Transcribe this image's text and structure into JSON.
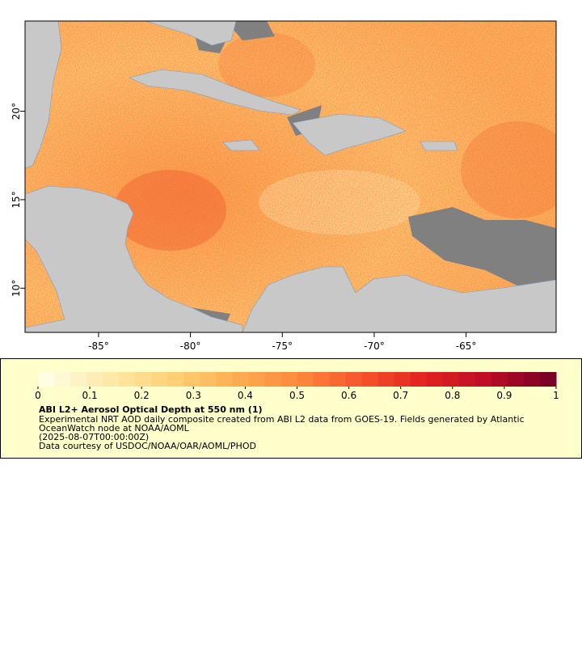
{
  "map": {
    "xlim": [
      -89,
      -60.1
    ],
    "ylim": [
      7.5,
      25.1
    ],
    "xticks": [
      {
        "value": -85,
        "label": "-85°"
      },
      {
        "value": -80,
        "label": "-80°"
      },
      {
        "value": -75,
        "label": "-75°"
      },
      {
        "value": -70,
        "label": "-70°"
      },
      {
        "value": -65,
        "label": "-65°"
      }
    ],
    "yticks": [
      {
        "value": 10,
        "label": "10°"
      },
      {
        "value": 15,
        "label": "15°"
      },
      {
        "value": 20,
        "label": "20°"
      }
    ]
  },
  "colorbar": {
    "lim": [
      0,
      1
    ],
    "ticks": [
      0,
      0.1,
      0.2,
      0.3,
      0.4,
      0.5,
      0.6,
      0.7,
      0.8,
      0.9,
      1
    ],
    "colors": [
      "#fffde4",
      "#feeaa8",
      "#fed176",
      "#fdae54",
      "#fc8a3c",
      "#f6552c",
      "#e2241f",
      "#c00c26",
      "#7a0026"
    ]
  },
  "legend": {
    "title": "ABI L2+ Aerosol Optical Depth at 550 nm (1)",
    "description": "Experimental NRT AOD daily composite created from ABI L2 data from GOES-19. Fields generated by Atlantic OceanWatch node at NOAA/AOML",
    "date": "(2025-08-07T00:00:00Z)",
    "credit": "Data courtesy of USDOC/NOAA/OAR/AOML/PHOD"
  }
}
